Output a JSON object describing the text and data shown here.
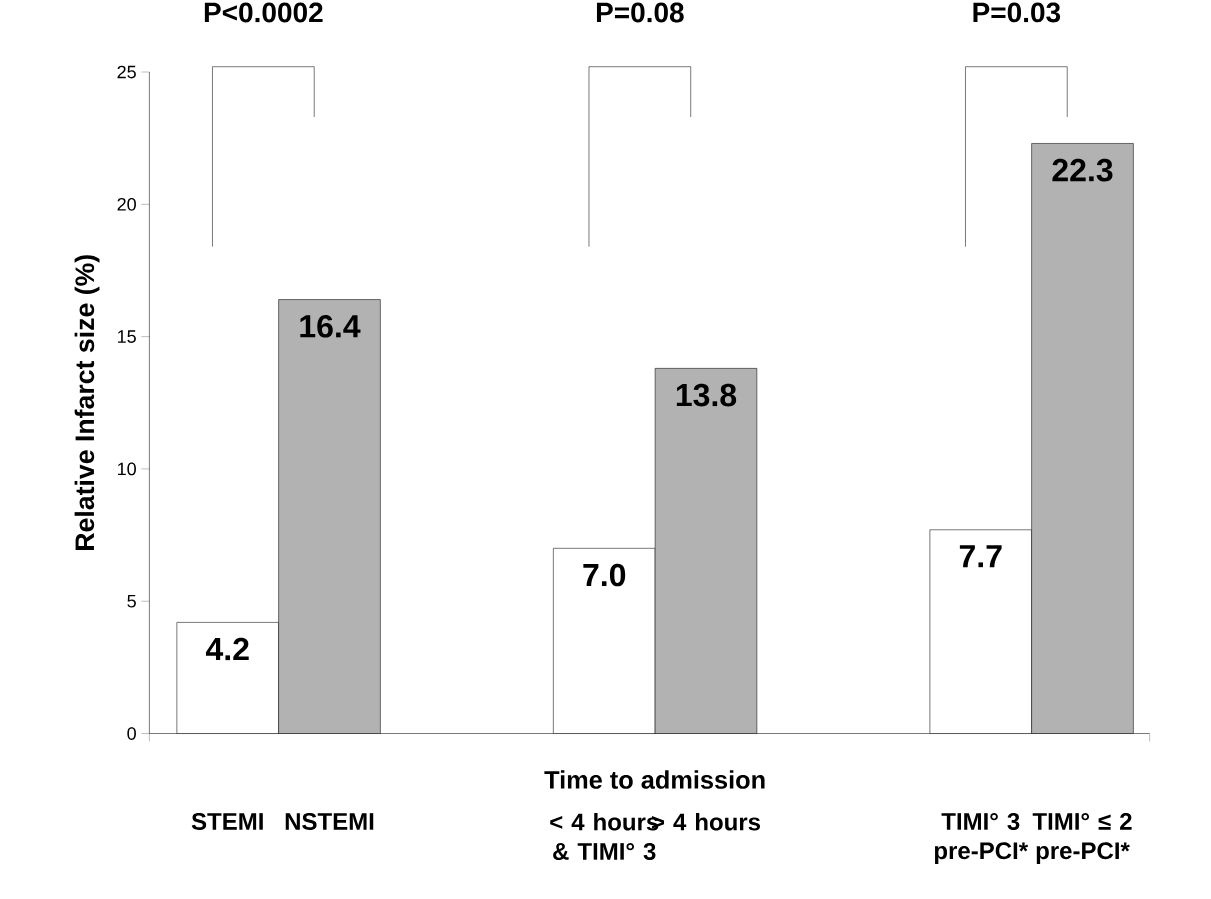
{
  "chart_data": {
    "type": "bar",
    "ylabel": "Relative Infarct size (%)",
    "categories": [
      "STEMI",
      "NSTEMI",
      "< 4 hours & TIMI° 3",
      "> 4 hours",
      "TIMI° 3 pre-PCI*",
      "TIMI° ≤ 2 pre-PCI*"
    ],
    "values": [
      4.2,
      16.4,
      7.0,
      13.8,
      7.7,
      22.3
    ],
    "colors": [
      "#ffffff",
      "#b2b2b2",
      "#ffffff",
      "#b2b2b2",
      "#ffffff",
      "#b2b2b2"
    ],
    "ylim": [
      0,
      25
    ],
    "yticks": [
      0,
      5,
      10,
      15,
      20,
      25
    ],
    "value_labels": [
      "4.2",
      "16.4",
      "7.0",
      "13.8",
      "7.7",
      "22.3"
    ],
    "annotations": [
      "P<0.0002",
      "P=0.08",
      "P=0.03",
      "Time to admission"
    ]
  }
}
